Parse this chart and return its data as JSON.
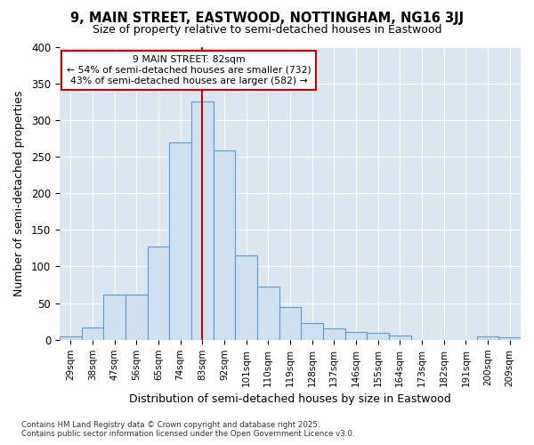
{
  "title": "9, MAIN STREET, EASTWOOD, NOTTINGHAM, NG16 3JJ",
  "subtitle": "Size of property relative to semi-detached houses in Eastwood",
  "xlabel": "Distribution of semi-detached houses by size in Eastwood",
  "ylabel": "Number of semi-detached properties",
  "footnote1": "Contains HM Land Registry data © Crown copyright and database right 2025.",
  "footnote2": "Contains public sector information licensed under the Open Government Licence v3.0.",
  "bin_labels": [
    "29sqm",
    "38sqm",
    "47sqm",
    "56sqm",
    "65sqm",
    "74sqm",
    "83sqm",
    "92sqm",
    "101sqm",
    "110sqm",
    "119sqm",
    "128sqm",
    "137sqm",
    "146sqm",
    "155sqm",
    "164sqm",
    "173sqm",
    "182sqm",
    "191sqm",
    "200sqm",
    "209sqm"
  ],
  "bar_values": [
    5,
    17,
    62,
    62,
    127,
    270,
    325,
    258,
    115,
    73,
    45,
    23,
    16,
    11,
    9,
    6,
    0,
    0,
    0,
    5,
    3
  ],
  "bar_color": "#cfe0f1",
  "bar_edge_color": "#5b9bd5",
  "grid_color": "#ffffff",
  "plot_bg_color": "#dce6f1",
  "fig_bg_color": "#ffffff",
  "vline_x_index": 6,
  "vline_color": "#cc0000",
  "annotation_title": "9 MAIN STREET: 82sqm",
  "annotation_line1": "← 54% of semi-detached houses are smaller (732)",
  "annotation_line2": "43% of semi-detached houses are larger (582) →",
  "annotation_box_color": "#ffffff",
  "annotation_edge_color": "#cc0000",
  "ylim": [
    0,
    400
  ],
  "yticks": [
    0,
    50,
    100,
    150,
    200,
    250,
    300,
    350,
    400
  ]
}
